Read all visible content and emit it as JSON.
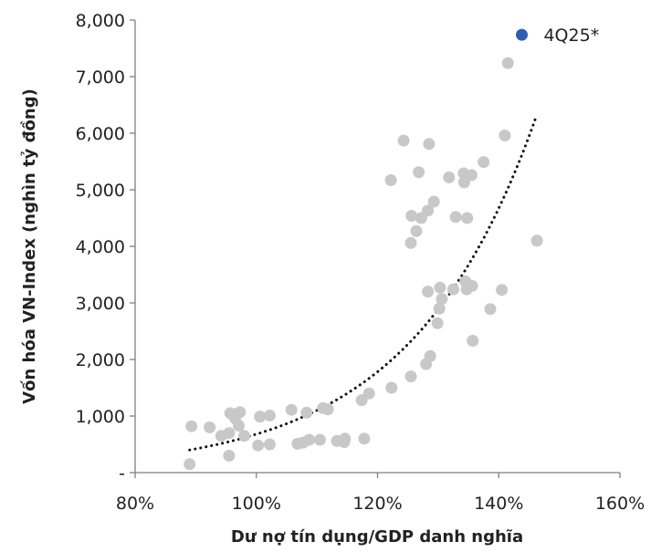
{
  "chart_data": {
    "type": "scatter",
    "xlabel": "Dư nợ tín dụng/GDP danh nghĩa",
    "ylabel": "Vốn hóa VN-Index (nghìn tỷ đồng)",
    "xlim": [
      0.8,
      1.6
    ],
    "ylim": [
      0,
      8000
    ],
    "x_ticks": [
      0.8,
      1.0,
      1.2,
      1.4,
      1.6
    ],
    "x_tick_labels": [
      "80%",
      "100%",
      "120%",
      "140%",
      "160%"
    ],
    "y_ticks": [
      0,
      1000,
      2000,
      3000,
      4000,
      5000,
      6000,
      7000,
      8000
    ],
    "y_tick_labels": [
      "-",
      "1,000",
      "2,000",
      "3,000",
      "4,000",
      "5,000",
      "6,000",
      "7,000",
      "8,000"
    ],
    "grid": false,
    "legend": "none",
    "colors": {
      "points": "#c8c8c8",
      "highlight": "#2f5eae",
      "trend": "#111111",
      "axis": "#7f7f7f"
    },
    "series": [
      {
        "style": "gray-points",
        "points": [
          [
            0.89,
            150
          ],
          [
            0.893,
            820
          ],
          [
            0.923,
            800
          ],
          [
            0.942,
            650
          ],
          [
            0.955,
            700
          ],
          [
            0.955,
            300
          ],
          [
            0.957,
            1050
          ],
          [
            0.965,
            960
          ],
          [
            0.968,
            1040
          ],
          [
            0.973,
            1070
          ],
          [
            0.971,
            830
          ],
          [
            0.98,
            650
          ],
          [
            1.003,
            480
          ],
          [
            1.006,
            990
          ],
          [
            1.022,
            1010
          ],
          [
            1.022,
            500
          ],
          [
            1.058,
            1110
          ],
          [
            1.068,
            510
          ],
          [
            1.077,
            530
          ],
          [
            1.083,
            1060
          ],
          [
            1.087,
            580
          ],
          [
            1.105,
            580
          ],
          [
            1.11,
            1140
          ],
          [
            1.118,
            1120
          ],
          [
            1.133,
            560
          ],
          [
            1.145,
            540
          ],
          [
            1.146,
            600
          ],
          [
            1.174,
            1280
          ],
          [
            1.178,
            600
          ],
          [
            1.186,
            1400
          ],
          [
            1.222,
            5170
          ],
          [
            1.223,
            1500
          ],
          [
            1.243,
            5870
          ],
          [
            1.255,
            1700
          ],
          [
            1.255,
            4060
          ],
          [
            1.256,
            4540
          ],
          [
            1.264,
            4270
          ],
          [
            1.268,
            5310
          ],
          [
            1.272,
            4500
          ],
          [
            1.28,
            1920
          ],
          [
            1.283,
            3200
          ],
          [
            1.283,
            4630
          ],
          [
            1.285,
            5810
          ],
          [
            1.287,
            2060
          ],
          [
            1.293,
            4790
          ],
          [
            1.299,
            2640
          ],
          [
            1.302,
            2900
          ],
          [
            1.303,
            3270
          ],
          [
            1.306,
            3070
          ],
          [
            1.318,
            5220
          ],
          [
            1.325,
            3240
          ],
          [
            1.329,
            4520
          ],
          [
            1.342,
            5290
          ],
          [
            1.343,
            5130
          ],
          [
            1.345,
            3380
          ],
          [
            1.347,
            3240
          ],
          [
            1.348,
            4500
          ],
          [
            1.355,
            5260
          ],
          [
            1.356,
            3300
          ],
          [
            1.357,
            2330
          ],
          [
            1.375,
            5490
          ],
          [
            1.386,
            2890
          ],
          [
            1.405,
            3230
          ],
          [
            1.41,
            5960
          ],
          [
            1.415,
            7240
          ],
          [
            1.463,
            4100
          ]
        ]
      },
      {
        "name": "4Q25*",
        "style": "highlight",
        "points": [
          [
            1.438,
            7740
          ]
        ]
      }
    ],
    "trendline": {
      "type": "exponential",
      "x_range": [
        0.89,
        1.462
      ],
      "points": [
        [
          0.89,
          400
        ],
        [
          1.462,
          6300
        ]
      ]
    }
  }
}
